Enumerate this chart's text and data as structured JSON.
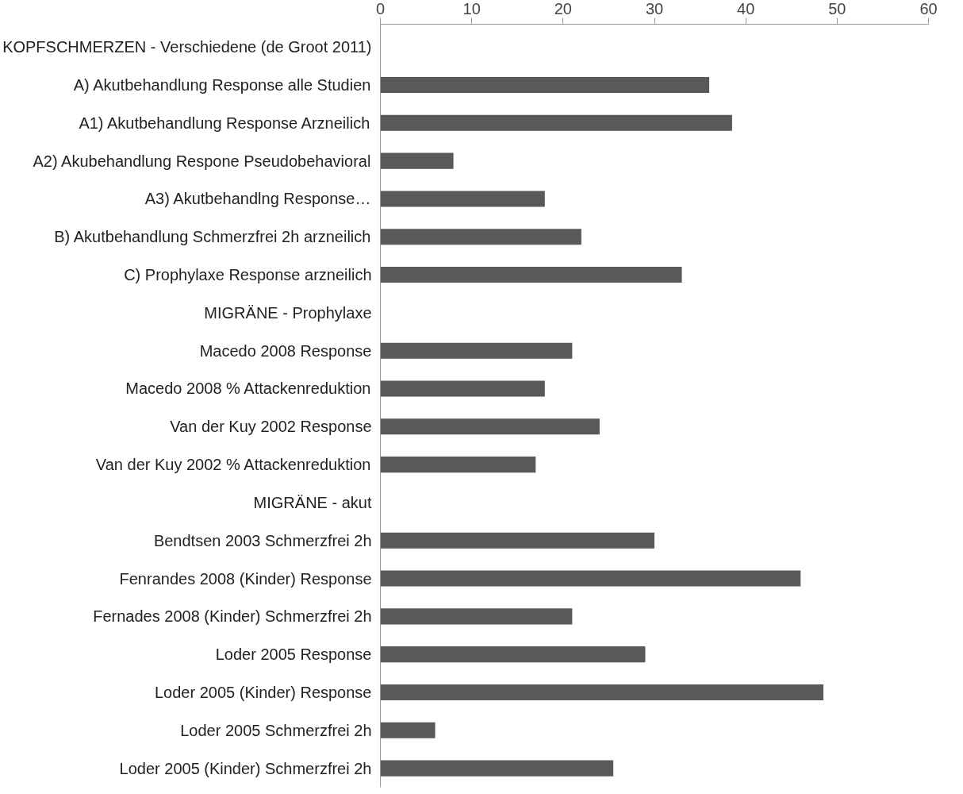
{
  "chart_data": {
    "type": "bar",
    "orientation": "horizontal",
    "categories": [
      "KOPFSCHMERZEN - Verschiedene (de Groot 2011)",
      "A) Akutbehandlung Response alle Studien",
      "A1) Akutbehandlung Response Arzneilich",
      "A2) Akubehandlung Respone Pseudobehavioral",
      "A3) Akutbehandlng Response…",
      "B) Akutbehandlung Schmerzfrei 2h arzneilich",
      "C) Prophylaxe Response arzneilich",
      "MIGRÄNE - Prophylaxe",
      "Macedo 2008 Response",
      "Macedo 2008 % Attackenreduktion",
      "Van der Kuy 2002 Response",
      "Van der Kuy 2002 % Attackenreduktion",
      "MIGRÄNE - akut",
      "Bendtsen 2003 Schmerzfrei 2h",
      "Fenrandes 2008 (Kinder) Response",
      "Fernades 2008 (Kinder) Schmerzfrei 2h",
      "Loder 2005 Response",
      "Loder 2005 (Kinder) Response",
      "Loder 2005 Schmerzfrei 2h",
      "Loder 2005 (Kinder) Schmerzfrei 2h"
    ],
    "values": [
      null,
      36,
      38.5,
      8,
      18,
      22,
      33,
      null,
      21,
      18,
      24,
      17,
      null,
      30,
      46,
      21,
      29,
      48.5,
      6,
      25.5
    ],
    "color": "#595959",
    "xlim": [
      0,
      60
    ],
    "xticks": [
      0,
      10,
      20,
      30,
      40,
      50,
      60
    ],
    "grid": false
  }
}
